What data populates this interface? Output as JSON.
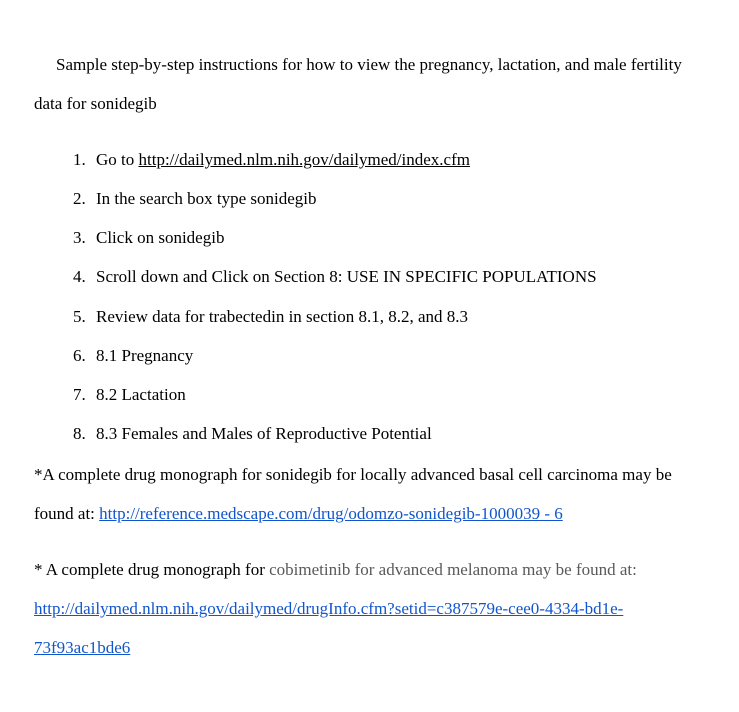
{
  "intro": "Sample step-by-step instructions for how to view the pregnancy, lactation, and male fertility data for sonidegib",
  "steps": [
    {
      "prefix": " Go to ",
      "link": "http://dailymed.nlm.nih.gov/dailymed/index.cfm"
    },
    {
      "text": "In the search box type sonidegib"
    },
    {
      "text": "Click on sonidegib"
    },
    {
      "text": "Scroll down and Click on Section 8: USE IN SPECIFIC POPULATIONS"
    },
    {
      "text": "Review data for trabectedin in section 8.1, 8.2, and 8.3"
    },
    {
      "text": "8.1 Pregnancy"
    },
    {
      "text": "8.2 Lactation"
    },
    {
      "text": "8.3 Females and Males of Reproductive Potential"
    }
  ],
  "footnote1_pre": "*A complete drug monograph for sonidegib for locally advanced basal cell carcinoma may be found at: ",
  "footnote1_link": "http://reference.medscape.com/drug/odomzo-sonidegib-1000039 - 6",
  "footnote2_pre": "* A complete drug monograph for ",
  "footnote2_gray": "cobimetinib for advanced melanoma may be found at: ",
  "footnote2_link": "http://dailymed.nlm.nih.gov/dailymed/drugInfo.cfm?setid=c387579e-cee0-4334-bd1e-73f93ac1bde6"
}
